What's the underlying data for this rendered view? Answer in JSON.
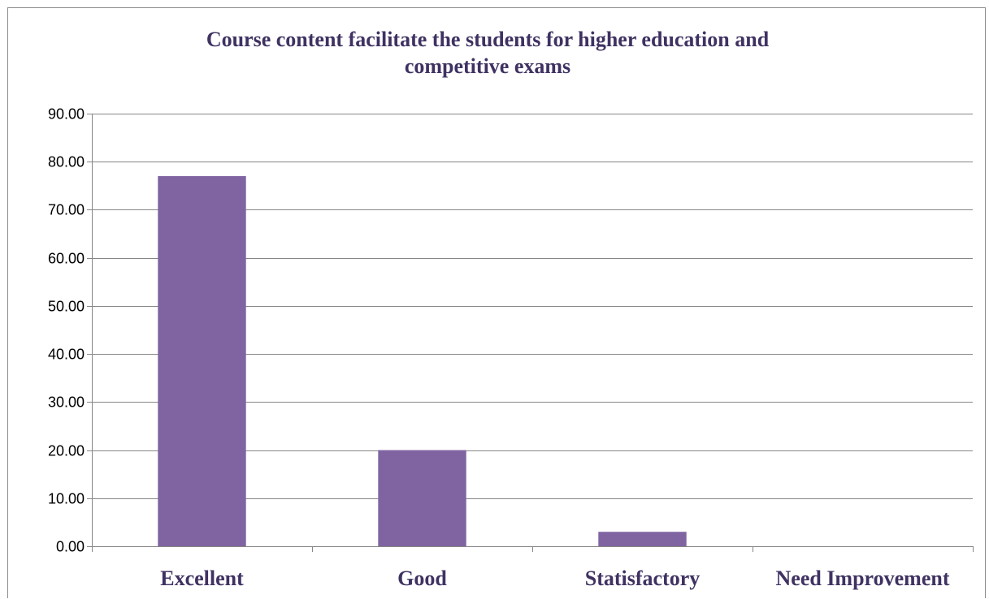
{
  "chart_data": {
    "type": "bar",
    "title": "Course content facilitate the students for higher education  and\ncompetitive exams",
    "xlabel": "",
    "ylabel": "",
    "categories": [
      "Excellent",
      "Good",
      "Statisfactory",
      "Need Improvement"
    ],
    "values": [
      77,
      20,
      3,
      0
    ],
    "ylim": [
      0,
      90
    ],
    "yticks": [
      "0.00",
      "10.00",
      "20.00",
      "30.00",
      "40.00",
      "50.00",
      "60.00",
      "70.00",
      "80.00",
      "90.00"
    ],
    "grid": true,
    "legend": "none",
    "colors": {
      "bar": "#8064a2",
      "title": "#3f3262",
      "category_label": "#3f3262",
      "gridline": "#868686",
      "axis": "#868686"
    }
  }
}
